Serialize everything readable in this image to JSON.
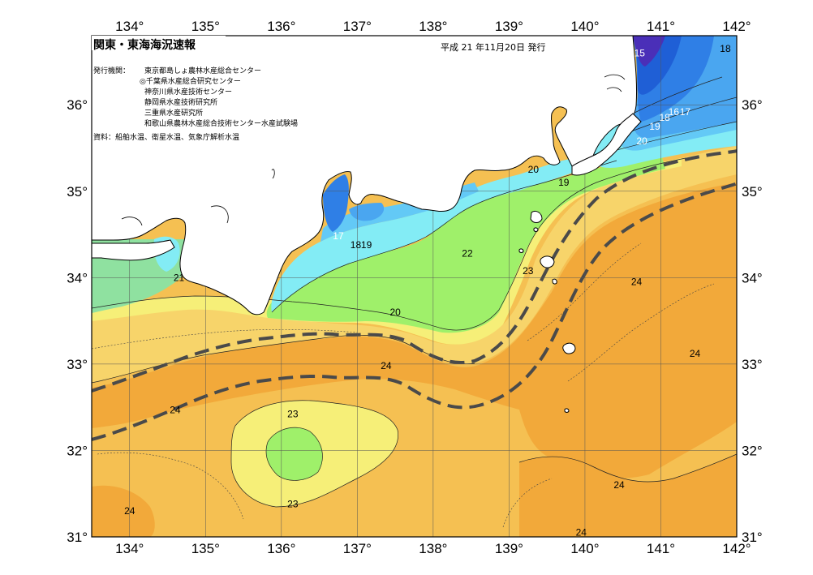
{
  "title": "関東・東海海況速報",
  "date": "平成 21 年11月20日 発行",
  "issuers_label": "発行機関：",
  "issuers": [
    "東京都島しょ農林水産総合センター",
    "◎千葉県水産総合研究センター",
    "神奈川県水産技術センター",
    "静岡県水産技術研究所",
    "三重県水産研究所",
    "和歌山県農林水産総合技術センター水産試験場"
  ],
  "source": "資料：船舶水温、衛星水温、気象庁解析水温",
  "lon_ticks": [
    134,
    135,
    136,
    137,
    138,
    139,
    140,
    141,
    142
  ],
  "lat_ticks": [
    31,
    32,
    33,
    34,
    35,
    36
  ],
  "lon_range": [
    133.5,
    142
  ],
  "lat_range": [
    31,
    36.8
  ],
  "colors": {
    "t15": "#4a2fb8",
    "t16": "#1f5fd6",
    "t17": "#2f7fe6",
    "t18": "#4aa6f0",
    "t19": "#63c9f6",
    "t20": "#83ecf5",
    "t21": "#8fe1a0",
    "t22": "#9ff06a",
    "t23": "#f6ef78",
    "t235": "#f7d46a",
    "t24": "#f5c052",
    "t245": "#f2a93a",
    "land": "#ffffff",
    "kuroshio": "#4a4a4a"
  },
  "contour_labels": [
    {
      "text": "15",
      "lon": 140.72,
      "lat": 36.6,
      "light": true
    },
    {
      "text": "18",
      "lon": 141.85,
      "lat": 36.65,
      "light": false
    },
    {
      "text": "16",
      "lon": 141.17,
      "lat": 35.92,
      "light": true
    },
    {
      "text": "17",
      "lon": 141.32,
      "lat": 35.92,
      "light": true
    },
    {
      "text": "18",
      "lon": 141.05,
      "lat": 35.85,
      "light": true
    },
    {
      "text": "19",
      "lon": 140.92,
      "lat": 35.75,
      "light": true
    },
    {
      "text": "20",
      "lon": 140.75,
      "lat": 35.58,
      "light": true
    },
    {
      "text": "20",
      "lon": 139.32,
      "lat": 35.25,
      "light": false
    },
    {
      "text": "19",
      "lon": 139.72,
      "lat": 35.1,
      "light": false
    },
    {
      "text": "17",
      "lon": 136.75,
      "lat": 34.48,
      "light": true
    },
    {
      "text": "18",
      "lon": 136.98,
      "lat": 34.38,
      "light": false
    },
    {
      "text": "19",
      "lon": 137.12,
      "lat": 34.38,
      "light": false
    },
    {
      "text": "22",
      "lon": 138.45,
      "lat": 34.28,
      "light": false
    },
    {
      "text": "21",
      "lon": 134.65,
      "lat": 34.0,
      "light": false
    },
    {
      "text": "23",
      "lon": 139.25,
      "lat": 34.08,
      "light": false
    },
    {
      "text": "24",
      "lon": 140.68,
      "lat": 33.95,
      "light": false
    },
    {
      "text": "20",
      "lon": 137.5,
      "lat": 33.6,
      "light": false
    },
    {
      "text": "24",
      "lon": 137.38,
      "lat": 32.98,
      "light": false
    },
    {
      "text": "24",
      "lon": 141.45,
      "lat": 33.12,
      "light": false
    },
    {
      "text": "24",
      "lon": 134.6,
      "lat": 32.47,
      "light": false
    },
    {
      "text": "23",
      "lon": 136.15,
      "lat": 32.42,
      "light": false
    },
    {
      "text": "23",
      "lon": 136.15,
      "lat": 31.38,
      "light": false
    },
    {
      "text": "24",
      "lon": 134.0,
      "lat": 31.3,
      "light": false
    },
    {
      "text": "24",
      "lon": 140.45,
      "lat": 31.6,
      "light": false
    },
    {
      "text": "24",
      "lon": 139.95,
      "lat": 31.05,
      "light": false
    }
  ]
}
